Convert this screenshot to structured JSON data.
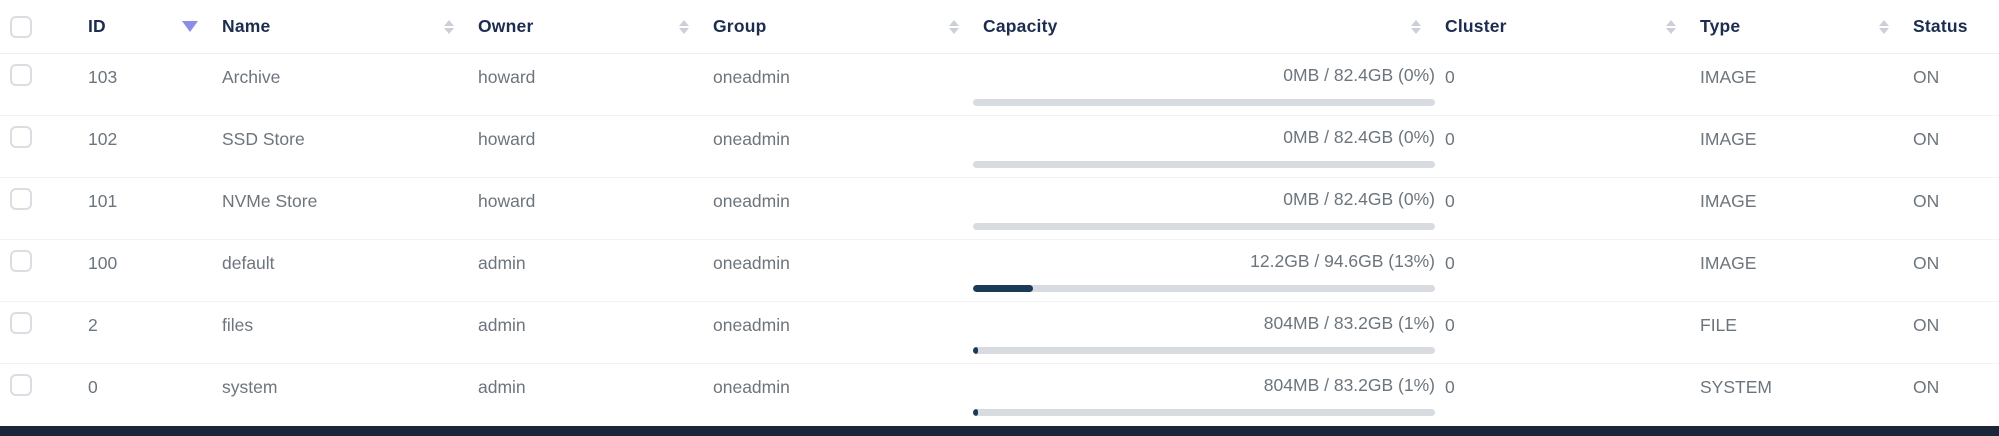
{
  "table": {
    "columns": [
      {
        "key": "id",
        "label": "ID",
        "sort": "desc"
      },
      {
        "key": "name",
        "label": "Name",
        "sort": "none"
      },
      {
        "key": "owner",
        "label": "Owner",
        "sort": "none"
      },
      {
        "key": "group",
        "label": "Group",
        "sort": "none"
      },
      {
        "key": "capacity",
        "label": "Capacity",
        "sort": "none"
      },
      {
        "key": "cluster",
        "label": "Cluster",
        "sort": "none"
      },
      {
        "key": "type",
        "label": "Type",
        "sort": "none"
      },
      {
        "key": "status",
        "label": "Status",
        "sort": "hidden"
      }
    ],
    "rows": [
      {
        "id": "103",
        "name": "Archive",
        "owner": "howard",
        "group": "oneadmin",
        "capacity_label": "0MB / 82.4GB (0%)",
        "capacity_percent": 0,
        "cluster": "0",
        "type": "IMAGE",
        "status": "ON"
      },
      {
        "id": "102",
        "name": "SSD Store",
        "owner": "howard",
        "group": "oneadmin",
        "capacity_label": "0MB / 82.4GB (0%)",
        "capacity_percent": 0,
        "cluster": "0",
        "type": "IMAGE",
        "status": "ON"
      },
      {
        "id": "101",
        "name": "NVMe Store",
        "owner": "howard",
        "group": "oneadmin",
        "capacity_label": "0MB / 82.4GB (0%)",
        "capacity_percent": 0,
        "cluster": "0",
        "type": "IMAGE",
        "status": "ON"
      },
      {
        "id": "100",
        "name": "default",
        "owner": "admin",
        "group": "oneadmin",
        "capacity_label": "12.2GB / 94.6GB (13%)",
        "capacity_percent": 13,
        "cluster": "0",
        "type": "IMAGE",
        "status": "ON"
      },
      {
        "id": "2",
        "name": "files",
        "owner": "admin",
        "group": "oneadmin",
        "capacity_label": "804MB / 83.2GB (1%)",
        "capacity_percent": 1,
        "cluster": "0",
        "type": "FILE",
        "status": "ON"
      },
      {
        "id": "0",
        "name": "system",
        "owner": "admin",
        "group": "oneadmin",
        "capacity_label": "804MB / 83.2GB (1%)",
        "capacity_percent": 1,
        "cluster": "0",
        "type": "SYSTEM",
        "status": "ON"
      }
    ]
  },
  "colors": {
    "header_text": "#1c2d4f",
    "body_text": "#6c757d",
    "sort_active": "#8d8de8",
    "sort_inactive": "#ccd0d6",
    "capacity_bar_fill": "#1b3a57",
    "capacity_bar_track": "#d8dbdf",
    "footer_bar": "#1b2738",
    "row_border": "#f3f3f6"
  }
}
